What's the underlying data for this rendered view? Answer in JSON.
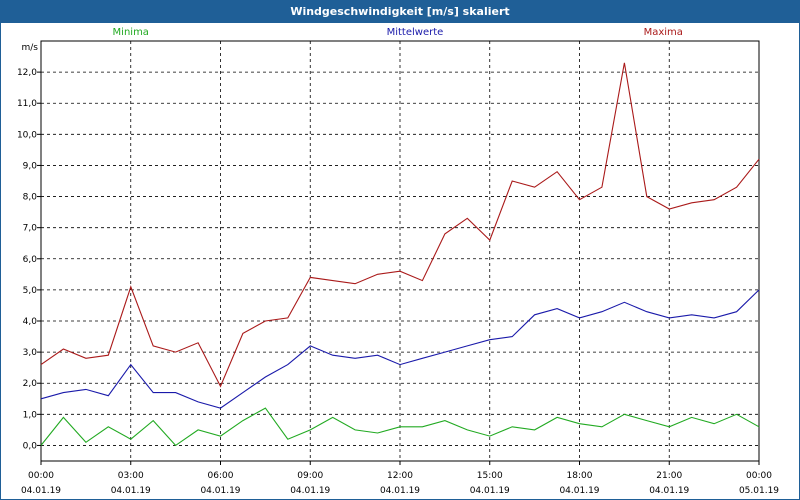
{
  "window": {
    "title": "Windgeschwindigkeit [m/s] skaliert"
  },
  "chart_data": {
    "type": "line",
    "ylabel": "m/s",
    "ylim": [
      -0.5,
      13.0
    ],
    "yticks": [
      "0,0",
      "1,0",
      "2,0",
      "3,0",
      "4,0",
      "5,0",
      "6,0",
      "7,0",
      "8,0",
      "9,0",
      "10,0",
      "11,0",
      "12,0"
    ],
    "xticks": [
      {
        "time": "00:00",
        "date": "04.01.19"
      },
      {
        "time": "03:00",
        "date": "04.01.19"
      },
      {
        "time": "06:00",
        "date": "04.01.19"
      },
      {
        "time": "09:00",
        "date": "04.01.19"
      },
      {
        "time": "12:00",
        "date": "04.01.19"
      },
      {
        "time": "15:00",
        "date": "04.01.19"
      },
      {
        "time": "18:00",
        "date": "04.01.19"
      },
      {
        "time": "21:00",
        "date": "04.01.19"
      },
      {
        "time": "00:00",
        "date": "05.01.19"
      }
    ],
    "grid": true,
    "legend_position": "top",
    "x_hours": [
      0,
      0.75,
      1.5,
      2.25,
      3,
      3.75,
      4.5,
      5.25,
      6,
      6.75,
      7.5,
      8.25,
      9,
      9.75,
      10.5,
      11.25,
      12,
      12.75,
      13.5,
      14.25,
      15,
      15.75,
      16.5,
      17.25,
      18,
      18.75,
      19.5,
      20.25,
      21,
      21.75,
      22.5,
      23.25,
      24
    ],
    "series": [
      {
        "name": "Minima",
        "color": "#22aa22",
        "values": [
          0.0,
          0.9,
          0.1,
          0.6,
          0.2,
          0.8,
          0.0,
          0.5,
          0.3,
          0.8,
          1.2,
          0.2,
          0.5,
          0.9,
          0.5,
          0.4,
          0.6,
          0.6,
          0.8,
          0.5,
          0.3,
          0.6,
          0.5,
          0.9,
          0.7,
          0.6,
          1.0,
          0.8,
          0.6,
          0.9,
          0.7,
          1.0,
          0.6
        ]
      },
      {
        "name": "Mittelwerte",
        "color": "#1a1aaa",
        "values": [
          1.5,
          1.7,
          1.8,
          1.6,
          2.6,
          1.7,
          1.7,
          1.4,
          1.2,
          1.7,
          2.2,
          2.6,
          3.2,
          2.9,
          2.8,
          2.9,
          2.6,
          2.8,
          3.0,
          3.2,
          3.4,
          3.5,
          4.2,
          4.4,
          4.1,
          4.3,
          4.6,
          4.3,
          4.1,
          4.2,
          4.1,
          4.3,
          5.0
        ]
      },
      {
        "name": "Maxima",
        "color": "#aa1a1a",
        "values": [
          2.6,
          3.1,
          2.8,
          2.9,
          5.1,
          3.2,
          3.0,
          3.3,
          1.9,
          3.6,
          4.0,
          4.1,
          5.4,
          5.3,
          5.2,
          5.5,
          5.6,
          5.3,
          6.8,
          7.3,
          6.6,
          8.5,
          8.3,
          8.8,
          7.9,
          8.3,
          12.3,
          8.0,
          7.6,
          7.8,
          7.9,
          8.3,
          9.2
        ]
      }
    ]
  }
}
